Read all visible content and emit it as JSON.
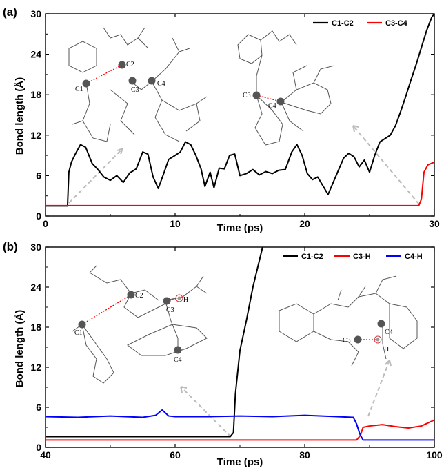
{
  "chart_data": [
    {
      "panel": "(a)",
      "type": "line",
      "xlabel": "Time (ps)",
      "ylabel": "Bond length (Å)",
      "xlim": [
        0,
        30
      ],
      "ylim": [
        0,
        30
      ],
      "xticks": [
        0,
        10,
        20,
        30
      ],
      "yticks": [
        0,
        6,
        12,
        18,
        24,
        30
      ],
      "legend": "top-right",
      "series": [
        {
          "name": "C1-C2",
          "color": "#000000",
          "x": [
            0,
            1.7,
            1.8,
            2.0,
            2.3,
            2.7,
            3.1,
            3.6,
            4.0,
            4.5,
            5.0,
            5.5,
            6.0,
            6.5,
            7.0,
            7.5,
            7.9,
            8.3,
            8.7,
            9.1,
            9.5,
            10.0,
            10.4,
            10.8,
            11.2,
            11.6,
            12.0,
            12.3,
            12.7,
            13.0,
            13.4,
            13.8,
            14.2,
            14.6,
            15.0,
            15.5,
            16.0,
            16.5,
            17.0,
            17.5,
            18.0,
            18.5,
            19.0,
            19.4,
            19.8,
            20.2,
            20.6,
            21.0,
            21.4,
            21.8,
            22.2,
            22.6,
            23.0,
            23.4,
            23.8,
            24.2,
            24.6,
            25.0,
            25.4,
            25.8,
            26.2,
            26.6,
            27.0,
            27.4,
            27.8,
            28.2,
            28.6,
            29.0,
            29.4,
            29.8,
            30.0
          ],
          "y": [
            1.5,
            1.5,
            6.5,
            8.0,
            9.2,
            10.6,
            10.2,
            7.8,
            7.0,
            5.8,
            5.3,
            6.0,
            5.0,
            6.4,
            7.0,
            9.5,
            9.2,
            5.8,
            4.1,
            6.2,
            8.4,
            9.0,
            9.5,
            11.0,
            10.6,
            9.0,
            7.0,
            4.4,
            6.5,
            4.2,
            7.1,
            7.0,
            9.0,
            9.2,
            6.0,
            6.3,
            6.9,
            6.1,
            6.6,
            6.3,
            6.8,
            6.9,
            9.5,
            10.6,
            9.0,
            6.3,
            5.4,
            5.8,
            4.5,
            3.2,
            5.0,
            6.8,
            8.6,
            9.3,
            8.8,
            7.3,
            8.3,
            6.5,
            9.0,
            11.0,
            11.5,
            12.0,
            13.4,
            15.5,
            17.8,
            20.2,
            22.5,
            25.0,
            27.5,
            29.5,
            30.0
          ]
        },
        {
          "name": "C3-C4",
          "color": "#ff0000",
          "x": [
            0,
            5,
            10,
            15,
            20,
            25,
            28.8,
            29.0,
            29.2,
            29.5,
            30.0
          ],
          "y": [
            1.55,
            1.55,
            1.55,
            1.55,
            1.55,
            1.55,
            1.55,
            2.5,
            6.5,
            7.6,
            8.0
          ]
        }
      ],
      "annotations": {
        "left_structure_labels": [
          "C1",
          "C2",
          "C3",
          "C4"
        ],
        "right_structure_labels": [
          "C3",
          "C4"
        ]
      }
    },
    {
      "panel": "(b)",
      "type": "line",
      "xlabel": "Time (ps)",
      "ylabel": "Bond length (Å)",
      "xlim": [
        40,
        100
      ],
      "ylim": [
        0,
        30
      ],
      "xticks": [
        40,
        60,
        80,
        100
      ],
      "yticks": [
        0,
        6,
        12,
        18,
        24,
        30
      ],
      "legend": "top-right",
      "series": [
        {
          "name": "C1-C2",
          "color": "#000000",
          "x": [
            40,
            50,
            60,
            68.5,
            69.0,
            69.3,
            70.0,
            71.0,
            72.0,
            73.5
          ],
          "y": [
            1.6,
            1.6,
            1.6,
            1.6,
            2.2,
            8.0,
            14.5,
            19.0,
            24.0,
            30.0
          ]
        },
        {
          "name": "C3-H",
          "color": "#ff0000",
          "x": [
            40,
            50,
            60,
            70,
            80,
            88.0,
            88.6,
            89.0,
            90,
            92,
            94,
            96,
            98,
            100
          ],
          "y": [
            1.1,
            1.1,
            1.1,
            1.1,
            1.1,
            1.1,
            1.8,
            3.0,
            3.2,
            3.4,
            3.1,
            2.9,
            3.2,
            4.1
          ]
        },
        {
          "name": "C4-H",
          "color": "#0000ff",
          "x": [
            40,
            45,
            50,
            55,
            57,
            58,
            59,
            60,
            65,
            70,
            75,
            80,
            85,
            87.5,
            88.0,
            88.5,
            89.0,
            90,
            95,
            100
          ],
          "y": [
            4.6,
            4.5,
            4.7,
            4.5,
            4.8,
            5.6,
            4.7,
            4.6,
            4.6,
            4.7,
            4.6,
            4.8,
            4.6,
            4.5,
            3.5,
            2.0,
            1.1,
            1.1,
            1.1,
            1.1
          ]
        }
      ],
      "annotations": {
        "left_structure_labels": [
          "C1",
          "C2",
          "C3",
          "H",
          "C4"
        ],
        "right_structure_labels": [
          "C3",
          "C4",
          "H"
        ]
      }
    }
  ]
}
